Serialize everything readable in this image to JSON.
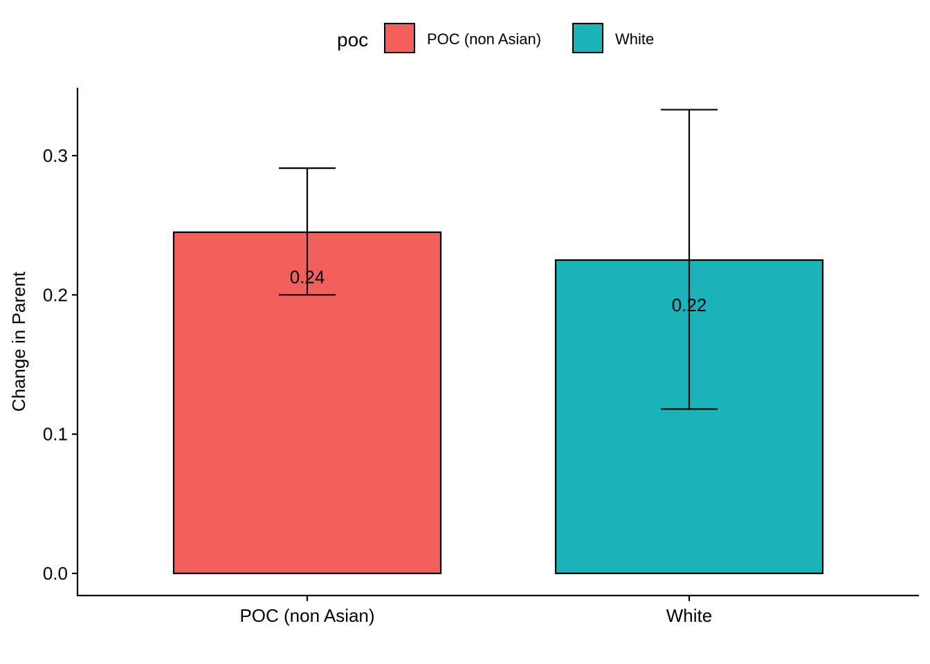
{
  "chart_data": {
    "type": "bar",
    "categories": [
      "POC (non Asian)",
      "White"
    ],
    "values": [
      0.245,
      0.225
    ],
    "data_labels": [
      "0.24",
      "0.22"
    ],
    "error_bars": [
      {
        "low": 0.2,
        "high": 0.291
      },
      {
        "low": 0.118,
        "high": 0.333
      }
    ],
    "colors": [
      "#F3605C",
      "#19B3B9"
    ],
    "xlabel": "",
    "ylabel": "Change in Parent",
    "ylim": [
      -0.016,
      0.348
    ],
    "yticks": [
      0.0,
      0.1,
      0.2,
      0.3
    ],
    "ytick_labels": [
      "0.0",
      "0.1",
      "0.2",
      "0.3"
    ],
    "legend": {
      "title": "poc",
      "position": "top",
      "entries": [
        "POC (non Asian)",
        "White"
      ]
    },
    "grid": false
  }
}
